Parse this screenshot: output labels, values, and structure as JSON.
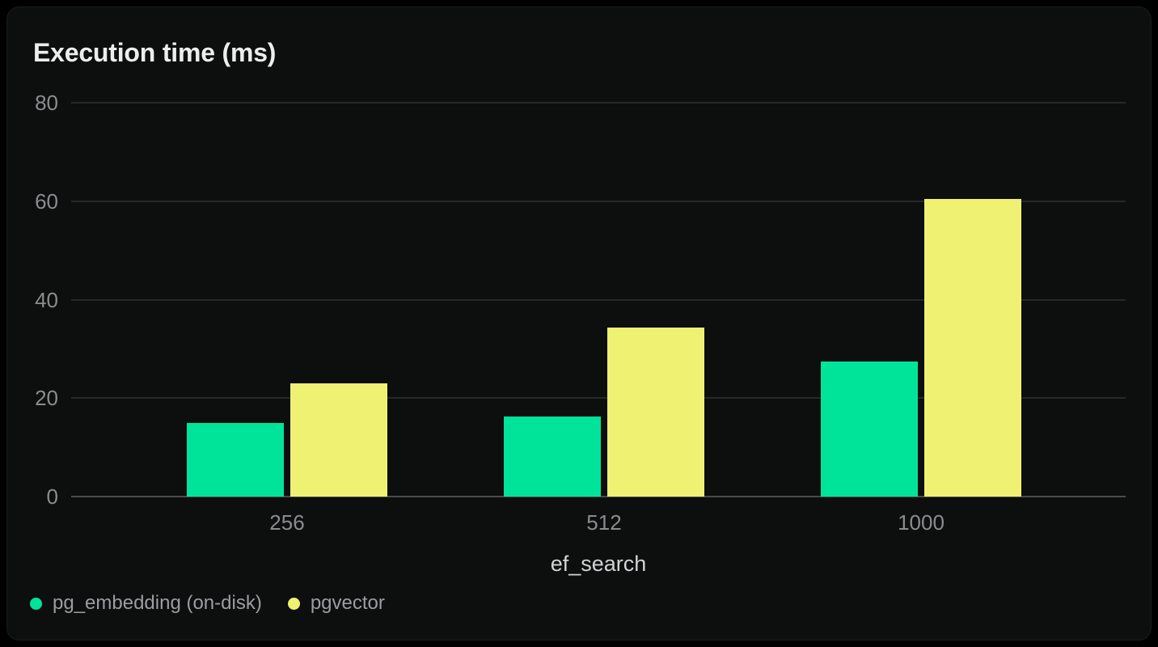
{
  "chart": {
    "title": "Execution time (ms)",
    "xlabel": "ef_search"
  },
  "colors": {
    "page_background": "#000000",
    "card_background": "#0d0e0e",
    "card_border": "#1a1b1b",
    "gridline": "#272828",
    "zero_line": "#4a4b4c",
    "title_text": "#ededee",
    "tick_text": "#8b8c8e",
    "axis_name_text": "#d2d3d5",
    "legend_text": "#9b9da1"
  },
  "chart_data": {
    "type": "bar",
    "title": "Execution time (ms)",
    "xlabel": "ef_search",
    "ylabel": "",
    "categories": [
      "256",
      "512",
      "1000"
    ],
    "series": [
      {
        "name": "pg_embedding (on-disk)",
        "color": "#00e49a",
        "values": [
          15.0,
          16.3,
          27.5
        ]
      },
      {
        "name": "pgvector",
        "color": "#eff173",
        "values": [
          23.0,
          34.4,
          60.4
        ]
      }
    ],
    "yticks": [
      0,
      20,
      40,
      60,
      80
    ],
    "ylim": [
      0,
      80
    ],
    "grid": "horizontal",
    "legend_position": "bottom-left"
  }
}
